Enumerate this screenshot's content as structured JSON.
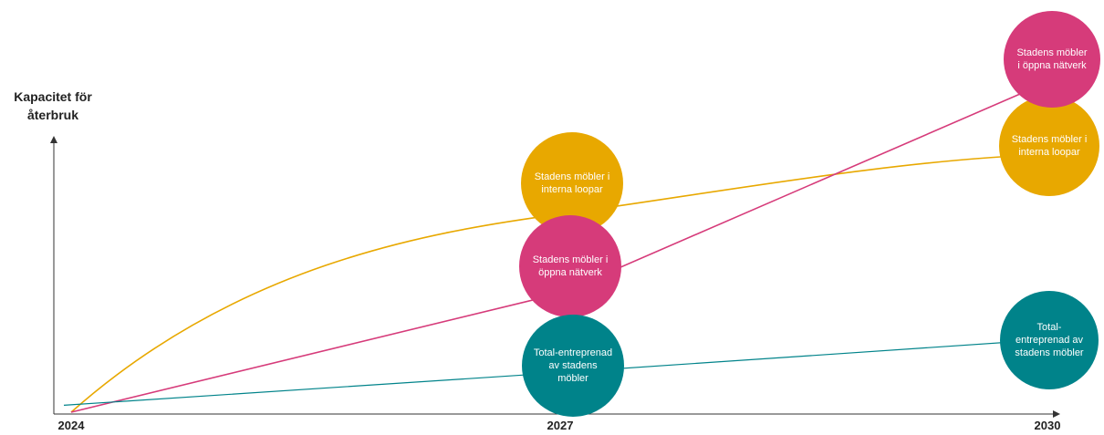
{
  "chart_data": {
    "type": "line",
    "title": "",
    "ylabel": "Kapacitet för återbruk",
    "xlabel": "",
    "x": [
      "2024",
      "2027",
      "2030"
    ],
    "series": [
      {
        "name": "Stadens möbler i interna loopar",
        "color": "#e8a800",
        "values": [
          0,
          0.6,
          0.78
        ],
        "labels": [
          "",
          "Stadens möbler i interna loopar",
          "Stadens möbler i interna loopar"
        ]
      },
      {
        "name": "Stadens möbler i öppna nätverk",
        "color": "#d63b7a",
        "values": [
          0,
          0.36,
          1.0
        ],
        "labels": [
          "",
          "Stadens möbler i öppna nätverk",
          "Stadens möbler i öppna nätverk"
        ]
      },
      {
        "name": "Total-entreprenad av stadens möbler",
        "color": "#00838a",
        "values": [
          0.01,
          0.12,
          0.22
        ],
        "labels": [
          "",
          "Total-entreprenad av stadens möbler",
          "Total-entreprenad av stadens möbler"
        ]
      }
    ]
  },
  "bubble_texts": {
    "s1_2027": "Stadens möbler i interna loopar",
    "s2_2027": "Stadens möbler i öppna nätverk",
    "s3_2027": "Total-entreprenad av stadens möbler",
    "s1_2030": "Stadens möbler i interna loopar",
    "s2_2030": "Stadens möbler i öppna nätverk",
    "s3_2030": "Total-entreprenad av stadens möbler"
  }
}
